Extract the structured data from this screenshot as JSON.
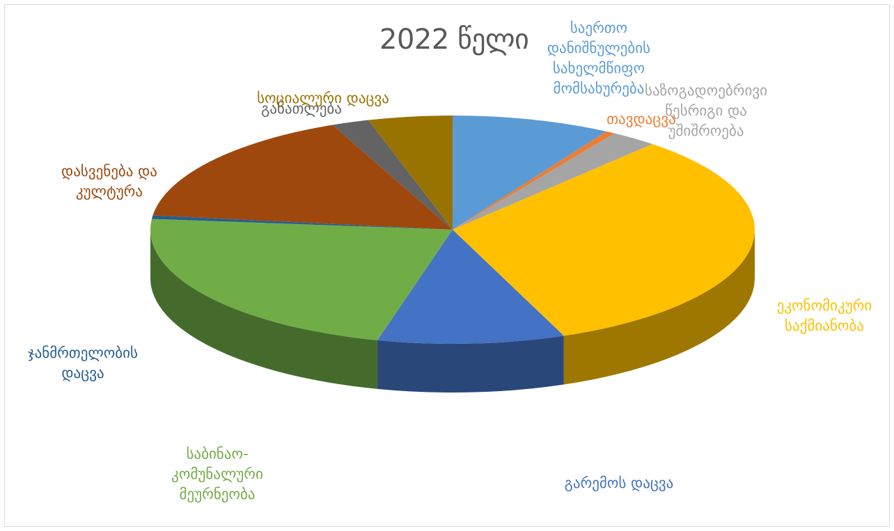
{
  "chart_data": {
    "type": "pie",
    "title": "2022 წელი",
    "categories": [
      "საერთო დანიშნულების სახელმწიფო მომსახურება",
      "თავდაცვა",
      "საზოგადოებრივი წესრიგი და უშიშროება",
      "ეკონომიკური საქმიანობა",
      "გარემოს დაცვა",
      "საბინაო-კომუნალური მეურნეობა",
      "ჯანმრთელობის დაცვა",
      "დასვენება და კულტურა",
      "განათლება",
      "სოციალური დაცვა"
    ],
    "values": [
      8.5,
      0.5,
      2.5,
      32.5,
      10.0,
      22.5,
      0.5,
      16.5,
      2.0,
      4.5
    ],
    "colors": [
      "#5B9BD5",
      "#ED7D31",
      "#A5A5A5",
      "#FFC000",
      "#4472C4",
      "#70AD47",
      "#255E91",
      "#9E480E",
      "#636363",
      "#997300"
    ],
    "legend": "none",
    "labels": [
      {
        "text": "საერთო\nდანიშნულების\nსახელმწიფო\nმომსახურება",
        "color": "#5B9BD5"
      },
      {
        "text": "თავდაცვა",
        "color": "#ED7D31"
      },
      {
        "text": "საზოგადოებრივი\nწესრიგი და\nუშიშროება",
        "color": "#A5A5A5"
      },
      {
        "text": "ეკონომიკური\nსაქმიანობა",
        "color": "#FFC000"
      },
      {
        "text": "გარემოს დაცვა",
        "color": "#4472C4"
      },
      {
        "text": "საბინაო-\nკომუნალური\nმეურნეობა",
        "color": "#70AD47"
      },
      {
        "text": "ჯანმრთელობის\nდაცვა",
        "color": "#255E91"
      },
      {
        "text": "დასვენება და\nკულტურა",
        "color": "#9E480E"
      },
      {
        "text": "განათლება",
        "color": "#636363"
      },
      {
        "text": "სოციალური დაცვა",
        "color": "#997300"
      }
    ]
  }
}
